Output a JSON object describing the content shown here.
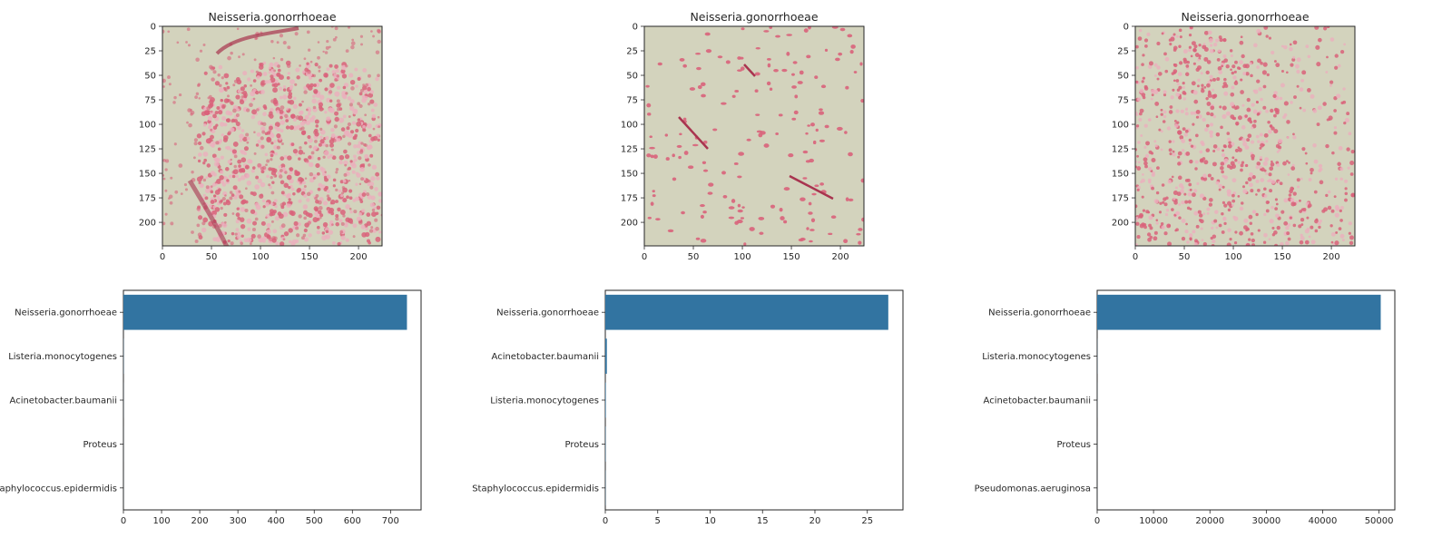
{
  "colors": {
    "bar": "#3274a1",
    "axis": "#262626",
    "tick_text": "#262626",
    "title_text": "#262626",
    "micro_background": "#d3d3bd",
    "micro_stain": "#d9627a",
    "micro_stain_dark": "#a8344f",
    "micro_light_stain": "#eab0bd"
  },
  "chart_data": [
    {
      "type": "image",
      "title": "Neisseria.gonorrhoeae",
      "xlim": [
        0,
        224
      ],
      "ylim": [
        224,
        0
      ],
      "xticks": [
        "0",
        "50",
        "100",
        "150",
        "200"
      ],
      "yticks": [
        "0",
        "25",
        "50",
        "75",
        "100",
        "125",
        "150",
        "175",
        "200"
      ]
    },
    {
      "type": "image",
      "title": "Neisseria.gonorrhoeae",
      "xlim": [
        0,
        224
      ],
      "ylim": [
        224,
        0
      ],
      "xticks": [
        "0",
        "50",
        "100",
        "150",
        "200"
      ],
      "yticks": [
        "0",
        "25",
        "50",
        "75",
        "100",
        "125",
        "150",
        "175",
        "200"
      ]
    },
    {
      "type": "image",
      "title": "Neisseria.gonorrhoeae",
      "xlim": [
        0,
        224
      ],
      "ylim": [
        224,
        0
      ],
      "xticks": [
        "0",
        "50",
        "100",
        "150",
        "200"
      ],
      "yticks": [
        "0",
        "25",
        "50",
        "75",
        "100",
        "125",
        "150",
        "175",
        "200"
      ]
    },
    {
      "type": "bar",
      "orientation": "horizontal",
      "categories": [
        "Neisseria.gonorrhoeae",
        "Listeria.monocytogenes",
        "Acinetobacter.baumanii",
        "Proteus",
        "Staphylococcus.epidermidis"
      ],
      "values": [
        743,
        0.5,
        0.2,
        0.1,
        0.1
      ],
      "xlim": [
        0,
        780
      ],
      "xticks": [
        0,
        100,
        200,
        300,
        400,
        500,
        600,
        700
      ]
    },
    {
      "type": "bar",
      "orientation": "horizontal",
      "categories": [
        "Neisseria.gonorrhoeae",
        "Acinetobacter.baumanii",
        "Listeria.monocytogenes",
        "Proteus",
        "Staphylococcus.epidermidis"
      ],
      "values": [
        27,
        0.15,
        0.05,
        0.03,
        0.02
      ],
      "xlim": [
        0,
        28.4
      ],
      "xticks": [
        0,
        5,
        10,
        15,
        20,
        25
      ]
    },
    {
      "type": "bar",
      "orientation": "horizontal",
      "categories": [
        "Neisseria.gonorrhoeae",
        "Listeria.monocytogenes",
        "Acinetobacter.baumanii",
        "Proteus",
        "Pseudomonas.aeruginosa"
      ],
      "values": [
        50300,
        20,
        10,
        5,
        5
      ],
      "xlim": [
        0,
        52800
      ],
      "xticks": [
        0,
        10000,
        20000,
        30000,
        40000,
        50000
      ]
    }
  ]
}
